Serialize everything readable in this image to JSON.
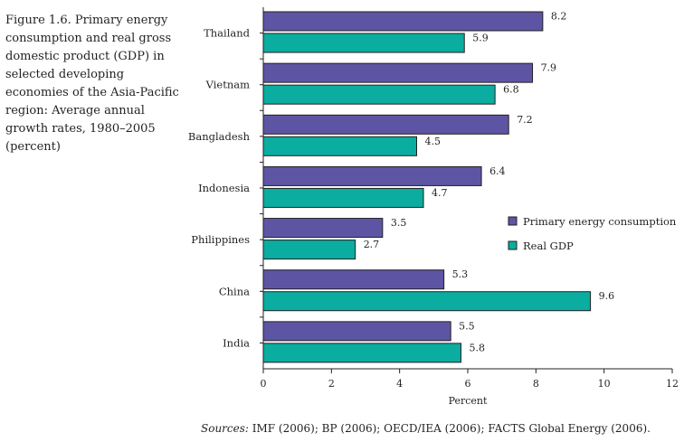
{
  "caption": "Figure 1.6. Primary energy consumption and real gross domestic product (GDP) in selected developing economies of the Asia-Pacific region: Average annual growth rates, 1980–2005 (percent)",
  "sources": {
    "lead": "Sources:",
    "text": " IMF (2006); BP (2006); OECD/IEA (2006); FACTS Global Energy (2006)."
  },
  "colors": {
    "energy": "#5d55a4",
    "gdp": "#0aada0",
    "axis": "#231f20",
    "text": "#231f20"
  },
  "chart_data": {
    "type": "bar",
    "orientation": "horizontal",
    "categories": [
      "Thailand",
      "Vietnam",
      "Bangladesh",
      "Indonesia",
      "Philippines",
      "China",
      "India"
    ],
    "series": [
      {
        "name": "Primary energy consumption",
        "values": [
          8.2,
          7.9,
          7.2,
          6.4,
          3.5,
          5.3,
          5.5
        ]
      },
      {
        "name": "Real GDP",
        "values": [
          5.9,
          6.8,
          4.5,
          4.7,
          2.7,
          9.6,
          5.8
        ]
      }
    ],
    "xlabel": "Percent",
    "ylabel": "",
    "xlim": [
      0,
      12
    ],
    "xticks": [
      "0",
      "2",
      "4",
      "6",
      "8",
      "10",
      "12"
    ],
    "data_labels": [
      [
        "8.2",
        "7.9",
        "7.2",
        "6.4",
        "3.5",
        "5.3",
        "5.5"
      ],
      [
        "5.9",
        "6.8",
        "4.5",
        "4.7",
        "2.7",
        "9.6",
        "5.8"
      ]
    ],
    "legend_position": "right",
    "grid": false
  }
}
